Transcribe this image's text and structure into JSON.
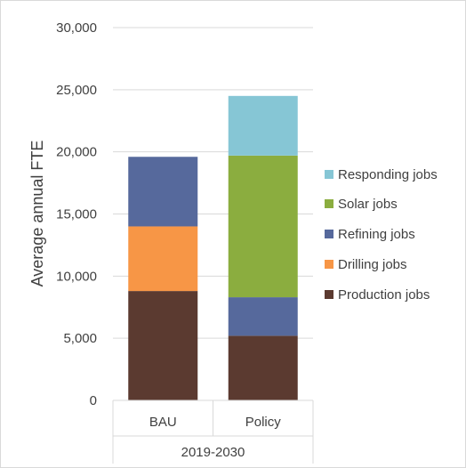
{
  "chart_data": {
    "type": "bar",
    "stacked": true,
    "categories": [
      "BAU",
      "Policy"
    ],
    "group_label": "2019-2030",
    "ylabel": "Average annual FTE",
    "xlabel": "",
    "title": "",
    "ylim": [
      0,
      30000
    ],
    "yticks": [
      0,
      5000,
      10000,
      15000,
      20000,
      25000,
      30000
    ],
    "ytick_labels": [
      "0",
      "5,000",
      "10,000",
      "15,000",
      "20,000",
      "25,000",
      "30,000"
    ],
    "grid": true,
    "legend_position": "right",
    "series": [
      {
        "name": "Production jobs",
        "color": "#5b3a30",
        "values": [
          8800,
          5200
        ]
      },
      {
        "name": "Drilling jobs",
        "color": "#f79646",
        "values": [
          5200,
          0
        ]
      },
      {
        "name": "Refining jobs",
        "color": "#56699c",
        "values": [
          5600,
          3100
        ]
      },
      {
        "name": "Solar jobs",
        "color": "#8bad3f",
        "values": [
          0,
          11400
        ]
      },
      {
        "name": "Responding jobs",
        "color": "#86c6d5",
        "values": [
          0,
          4800
        ]
      }
    ]
  }
}
